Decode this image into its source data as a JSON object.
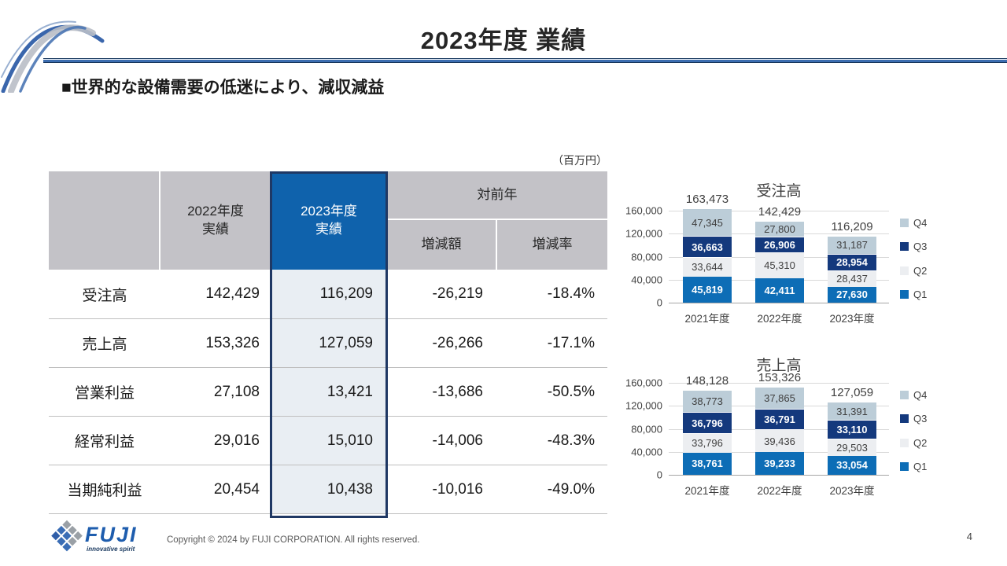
{
  "page": {
    "title": "2023年度 業績",
    "subtitle": "■世界的な設備需要の低迷により、減収減益",
    "page_number": "4"
  },
  "colors": {
    "accent_blue": "#0f62ac",
    "navy_border": "#1f3864",
    "header_gray": "#c3c2c7",
    "highlight_bg": "#e9eef3",
    "q1_blue": "#0d6db6",
    "q2_light": "#eceef1",
    "q3_navy": "#14397d",
    "q4_bluegray": "#bccdd8"
  },
  "table": {
    "unit_label": "（百万円）",
    "headers": {
      "fy2022": "2022年度\n実績",
      "fy2023": "2023年度\n実績",
      "vs_prev": "対前年",
      "diff": "増減額",
      "rate": "増減率"
    },
    "rows": [
      {
        "label": "受注高",
        "fy2022": "142,429",
        "fy2023": "116,209",
        "diff": "-26,219",
        "rate": "-18.4%"
      },
      {
        "label": "売上高",
        "fy2022": "153,326",
        "fy2023": "127,059",
        "diff": "-26,266",
        "rate": "-17.1%"
      },
      {
        "label": "営業利益",
        "fy2022": "27,108",
        "fy2023": "13,421",
        "diff": "-13,686",
        "rate": "-50.5%"
      },
      {
        "label": "経常利益",
        "fy2022": "29,016",
        "fy2023": "15,010",
        "diff": "-14,006",
        "rate": "-48.3%"
      },
      {
        "label": "当期純利益",
        "fy2022": "20,454",
        "fy2023": "10,438",
        "diff": "-10,016",
        "rate": "-49.0%"
      }
    ]
  },
  "chart_data": [
    {
      "type": "bar",
      "stacked": true,
      "title": "受注高",
      "categories": [
        "2021年度",
        "2022年度",
        "2023年度"
      ],
      "series": [
        {
          "name": "Q1",
          "color": "#0d6db6",
          "label_color": "#ffffff",
          "label_bold": true,
          "values": [
            45819,
            42411,
            27630
          ]
        },
        {
          "name": "Q2",
          "color": "#eceef1",
          "label_color": "#404040",
          "label_bold": false,
          "values": [
            33644,
            45310,
            28437
          ]
        },
        {
          "name": "Q3",
          "color": "#14397d",
          "label_color": "#ffffff",
          "label_bold": true,
          "values": [
            36663,
            26906,
            28954
          ]
        },
        {
          "name": "Q4",
          "color": "#bccdd8",
          "label_color": "#404040",
          "label_bold": false,
          "values": [
            47345,
            27800,
            31187
          ]
        }
      ],
      "totals": [
        "163,473",
        "142,429",
        "116,209"
      ],
      "legend_order": [
        "Q4",
        "Q3",
        "Q2",
        "Q1"
      ],
      "ylim": [
        0,
        160000
      ],
      "y_ticks": [
        {
          "value": 0,
          "label": "0"
        },
        {
          "value": 40000,
          "label": "40,000"
        },
        {
          "value": 80000,
          "label": "80,000"
        },
        {
          "value": 120000,
          "label": "120,000"
        },
        {
          "value": 160000,
          "label": "160,000"
        }
      ]
    },
    {
      "type": "bar",
      "stacked": true,
      "title": "売上高",
      "categories": [
        "2021年度",
        "2022年度",
        "2023年度"
      ],
      "series": [
        {
          "name": "Q1",
          "color": "#0d6db6",
          "label_color": "#ffffff",
          "label_bold": true,
          "values": [
            38761,
            39233,
            33054
          ]
        },
        {
          "name": "Q2",
          "color": "#eceef1",
          "label_color": "#404040",
          "label_bold": false,
          "values": [
            33796,
            39436,
            29503
          ]
        },
        {
          "name": "Q3",
          "color": "#14397d",
          "label_color": "#ffffff",
          "label_bold": true,
          "values": [
            36796,
            36791,
            33110
          ]
        },
        {
          "name": "Q4",
          "color": "#bccdd8",
          "label_color": "#404040",
          "label_bold": false,
          "values": [
            38773,
            37865,
            31391
          ]
        }
      ],
      "totals": [
        "148,128",
        "153,326",
        "127,059"
      ],
      "legend_order": [
        "Q4",
        "Q3",
        "Q2",
        "Q1"
      ],
      "ylim": [
        0,
        160000
      ],
      "y_ticks": [
        {
          "value": 0,
          "label": "0"
        },
        {
          "value": 40000,
          "label": "40,000"
        },
        {
          "value": 80000,
          "label": "80,000"
        },
        {
          "value": 120000,
          "label": "120,000"
        },
        {
          "value": 160000,
          "label": "160,000"
        }
      ]
    }
  ],
  "footer": {
    "logo_text": "FUJI",
    "logo_tagline": "innovative spirit",
    "copyright": "Copyright © 2024 by FUJI CORPORATION. All rights reserved."
  }
}
